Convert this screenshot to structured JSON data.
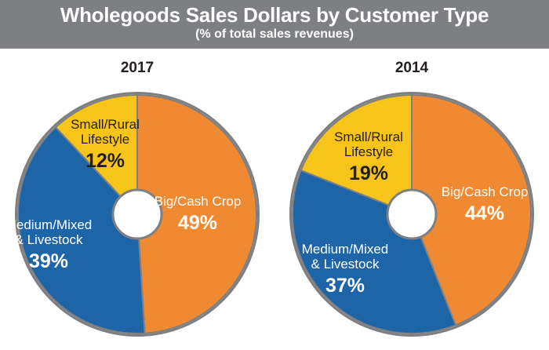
{
  "header": {
    "title": "Wholegoods Sales Dollars by Customer Type",
    "subtitle": "(% of total sales revenues)"
  },
  "colors": {
    "header_bg": "#7d7f82",
    "big_cash_crop": "#f08a32",
    "medium_mixed_livestock": "#1d65a6",
    "small_rural_lifestyle": "#f7c41a",
    "ring": "#7d7f82"
  },
  "chart_data": [
    {
      "type": "pie",
      "title": "2017",
      "slices": [
        {
          "name": "Big/Cash Crop",
          "value": 49,
          "label": "49%"
        },
        {
          "name": "Medium/Mixed & Livestock",
          "value": 39,
          "label": "39%"
        },
        {
          "name": "Small/Rural Lifestyle",
          "value": 12,
          "label": "12%"
        }
      ]
    },
    {
      "type": "pie",
      "title": "2014",
      "slices": [
        {
          "name": "Big/Cash Crop",
          "value": 44,
          "label": "44%"
        },
        {
          "name": "Medium/Mixed & Livestock",
          "value": 37,
          "label": "37%"
        },
        {
          "name": "Small/Rural Lifestyle",
          "value": 19,
          "label": "19%"
        }
      ]
    }
  ]
}
